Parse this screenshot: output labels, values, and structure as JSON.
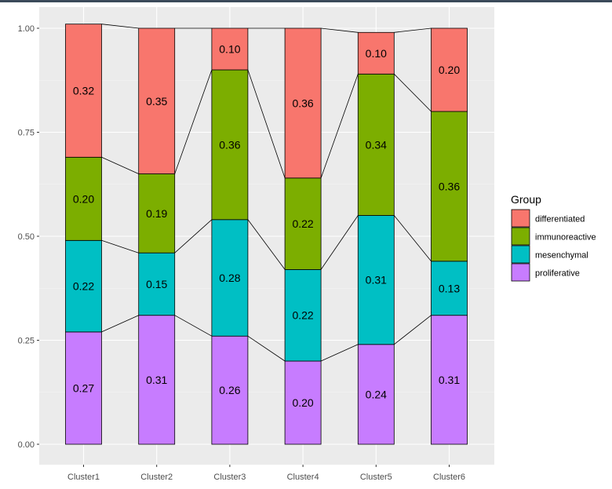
{
  "chart_data": {
    "type": "bar",
    "stacked": true,
    "categories": [
      "Cluster1",
      "Cluster2",
      "Cluster3",
      "Cluster4",
      "Cluster5",
      "Cluster6"
    ],
    "series": [
      {
        "name": "proliferative",
        "color": "#C77CFF",
        "values": [
          0.27,
          0.31,
          0.26,
          0.2,
          0.24,
          0.31
        ]
      },
      {
        "name": "mesenchymal",
        "color": "#00BFC4",
        "values": [
          0.22,
          0.15,
          0.28,
          0.22,
          0.31,
          0.13
        ]
      },
      {
        "name": "immunoreactive",
        "color": "#7CAE00",
        "values": [
          0.2,
          0.19,
          0.36,
          0.22,
          0.34,
          0.36
        ]
      },
      {
        "name": "differentiated",
        "color": "#F8766D",
        "values": [
          0.32,
          0.35,
          0.1,
          0.36,
          0.1,
          0.2
        ]
      }
    ],
    "ylim": [
      0,
      1
    ],
    "yticks": [
      "0.00",
      "0.25",
      "0.50",
      "0.75",
      "1.00"
    ],
    "legend_title": "Group",
    "legend_order": [
      "differentiated",
      "immunoreactive",
      "mesenchymal",
      "proliferative"
    ],
    "legend_position": "right",
    "grid": true,
    "connecting_lines": true
  }
}
